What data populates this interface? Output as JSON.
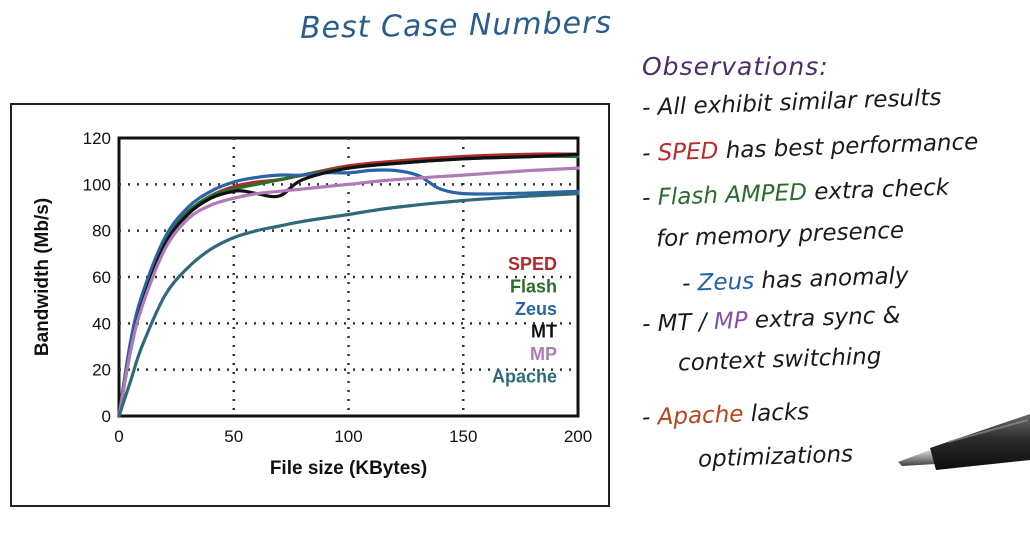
{
  "title": "Best Case Numbers",
  "observations": {
    "heading": "Observations:",
    "lines": [
      {
        "parts": [
          {
            "text": "- All exhibit similar results",
            "color": "#1a1a1a"
          }
        ]
      },
      {
        "parts": [
          {
            "text": "- ",
            "color": "#1a1a1a"
          },
          {
            "text": "SPED",
            "color": "#c0282c"
          },
          {
            "text": " has best performance",
            "color": "#1a1a1a"
          }
        ]
      },
      {
        "parts": [
          {
            "text": "- ",
            "color": "#1a1a1a"
          },
          {
            "text": "Flash AMPED",
            "color": "#2d6a2d"
          },
          {
            "text": " extra check",
            "color": "#1a1a1a"
          }
        ]
      },
      {
        "parts": [
          {
            "text": "for memory presence",
            "color": "#1a1a1a"
          }
        ]
      },
      {
        "parts": [
          {
            "text": "- ",
            "color": "#1a1a1a"
          },
          {
            "text": "Zeus",
            "color": "#2060a8"
          },
          {
            "text": " has anomaly",
            "color": "#1a1a1a"
          }
        ]
      },
      {
        "parts": [
          {
            "text": "- MT / ",
            "color": "#1a1a1a"
          },
          {
            "text": "MP",
            "color": "#8a4fa8"
          },
          {
            "text": " extra sync &",
            "color": "#1a1a1a"
          }
        ]
      },
      {
        "parts": [
          {
            "text": "context switching",
            "color": "#1a1a1a"
          }
        ]
      },
      {
        "parts": [
          {
            "text": "- ",
            "color": "#1a1a1a"
          },
          {
            "text": "Apache",
            "color": "#b8421c"
          },
          {
            "text": " lacks",
            "color": "#1a1a1a"
          }
        ]
      },
      {
        "parts": [
          {
            "text": "optimizations",
            "color": "#1a1a1a"
          }
        ]
      }
    ]
  },
  "chart_data": {
    "type": "line",
    "xlabel": "File size (KBytes)",
    "ylabel": "Bandwidth (Mb/s)",
    "xlim": [
      0,
      200
    ],
    "ylim": [
      0,
      120
    ],
    "xticks": [
      0,
      50,
      100,
      150,
      200
    ],
    "yticks": [
      0,
      20,
      40,
      60,
      80,
      100,
      120
    ],
    "grid": true,
    "legend_position": "right",
    "series": [
      {
        "name": "SPED",
        "color": "#b02a2a",
        "x": [
          0,
          5,
          10,
          20,
          30,
          40,
          50,
          60,
          70,
          80,
          100,
          120,
          150,
          180,
          200
        ],
        "y": [
          0,
          30,
          50,
          75,
          88,
          95,
          99,
          101,
          102,
          104,
          108,
          110,
          112,
          113,
          113
        ]
      },
      {
        "name": "Flash",
        "color": "#2e6b2e",
        "x": [
          0,
          5,
          10,
          20,
          30,
          40,
          50,
          60,
          70,
          80,
          100,
          120,
          150,
          180,
          200
        ],
        "y": [
          0,
          30,
          50,
          75,
          88,
          95,
          98,
          100,
          102,
          104,
          107,
          109,
          111,
          112,
          112
        ]
      },
      {
        "name": "Zeus",
        "color": "#2a63a6",
        "x": [
          0,
          5,
          10,
          20,
          30,
          40,
          50,
          60,
          70,
          80,
          90,
          100,
          110,
          120,
          130,
          135,
          140,
          150,
          170,
          200
        ],
        "y": [
          0,
          32,
          52,
          77,
          90,
          97,
          101,
          103,
          104,
          104,
          105,
          105,
          106,
          106,
          104,
          101,
          98,
          96,
          96,
          97
        ]
      },
      {
        "name": "MT",
        "color": "#111111",
        "x": [
          0,
          5,
          10,
          20,
          30,
          40,
          50,
          55,
          60,
          70,
          80,
          100,
          120,
          150,
          180,
          200
        ],
        "y": [
          0,
          28,
          48,
          74,
          87,
          94,
          97,
          97,
          96,
          95,
          102,
          107,
          109,
          111,
          112,
          113
        ]
      },
      {
        "name": "MP",
        "color": "#b07ab8",
        "x": [
          0,
          5,
          10,
          20,
          30,
          40,
          50,
          60,
          70,
          80,
          100,
          120,
          150,
          180,
          200
        ],
        "y": [
          0,
          28,
          47,
          72,
          85,
          91,
          94,
          96,
          97,
          98,
          100,
          102,
          104,
          106,
          107
        ]
      },
      {
        "name": "Apache",
        "color": "#2f6a7a",
        "x": [
          0,
          5,
          10,
          20,
          30,
          40,
          50,
          60,
          70,
          80,
          100,
          120,
          150,
          180,
          200
        ],
        "y": [
          0,
          15,
          30,
          52,
          64,
          72,
          77,
          80,
          82,
          84,
          87,
          90,
          93,
          95,
          96
        ]
      }
    ]
  }
}
